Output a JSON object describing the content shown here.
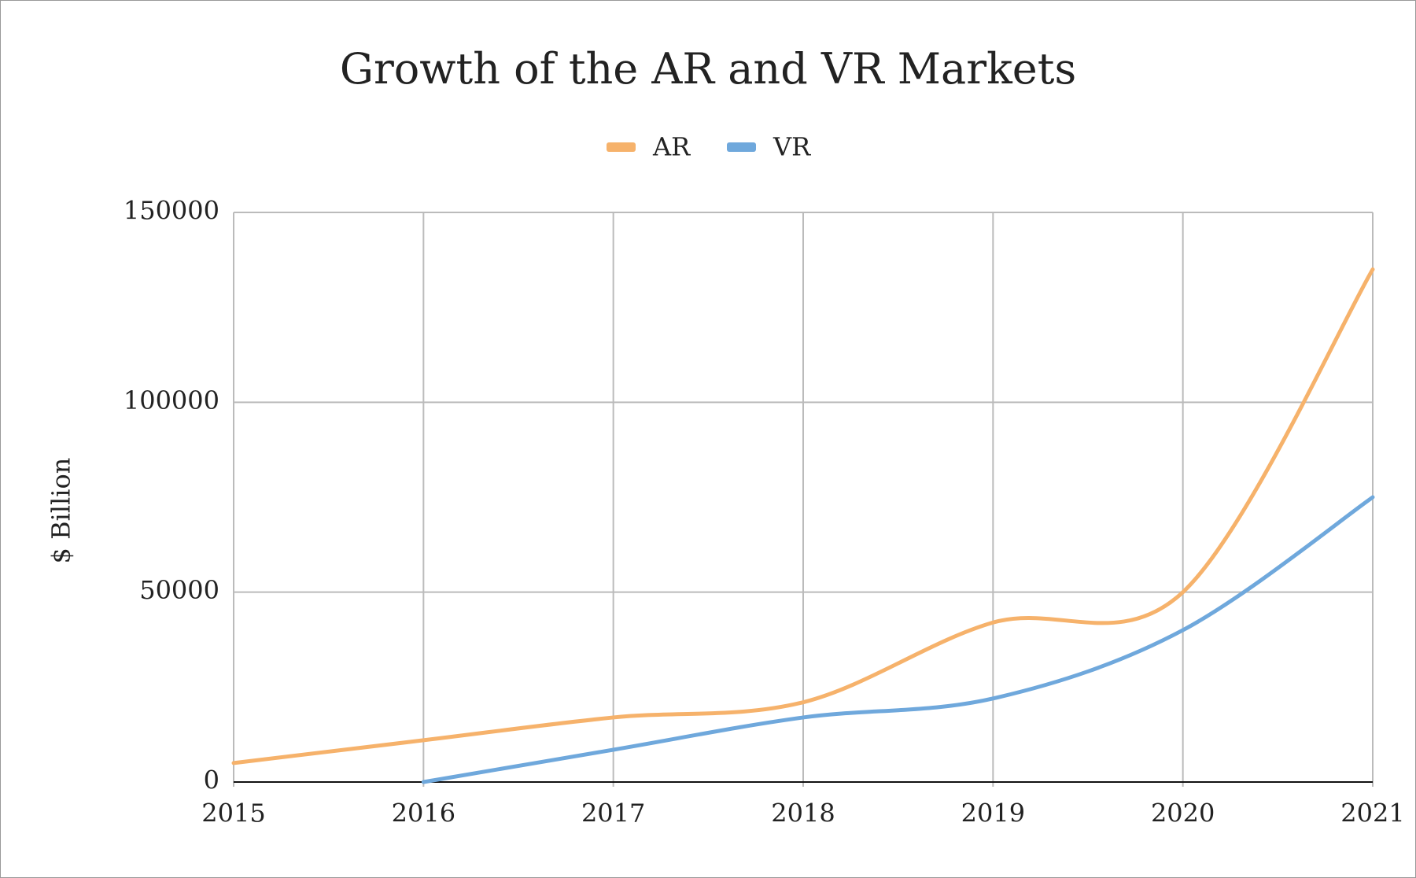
{
  "chart_data": {
    "type": "line",
    "title": "Growth of the AR and VR Markets",
    "y_label": "$ Billion",
    "x": [
      2015,
      2016,
      2017,
      2018,
      2019,
      2020,
      2021
    ],
    "series": [
      {
        "name": "AR",
        "color": "#f6b26b",
        "values": [
          5000,
          11000,
          17000,
          21000,
          42000,
          50000,
          135000
        ]
      },
      {
        "name": "VR",
        "color": "#6fa8dc",
        "values": [
          null,
          0,
          8500,
          17000,
          22000,
          40000,
          75000
        ]
      }
    ],
    "xlim": [
      2015,
      2021
    ],
    "xticks": [
      2015,
      2016,
      2017,
      2018,
      2019,
      2020,
      2021
    ],
    "ylim": [
      0,
      150000
    ],
    "yticks": [
      0,
      50000,
      100000,
      150000
    ],
    "grid": true,
    "legend": "top",
    "smooth": true
  }
}
